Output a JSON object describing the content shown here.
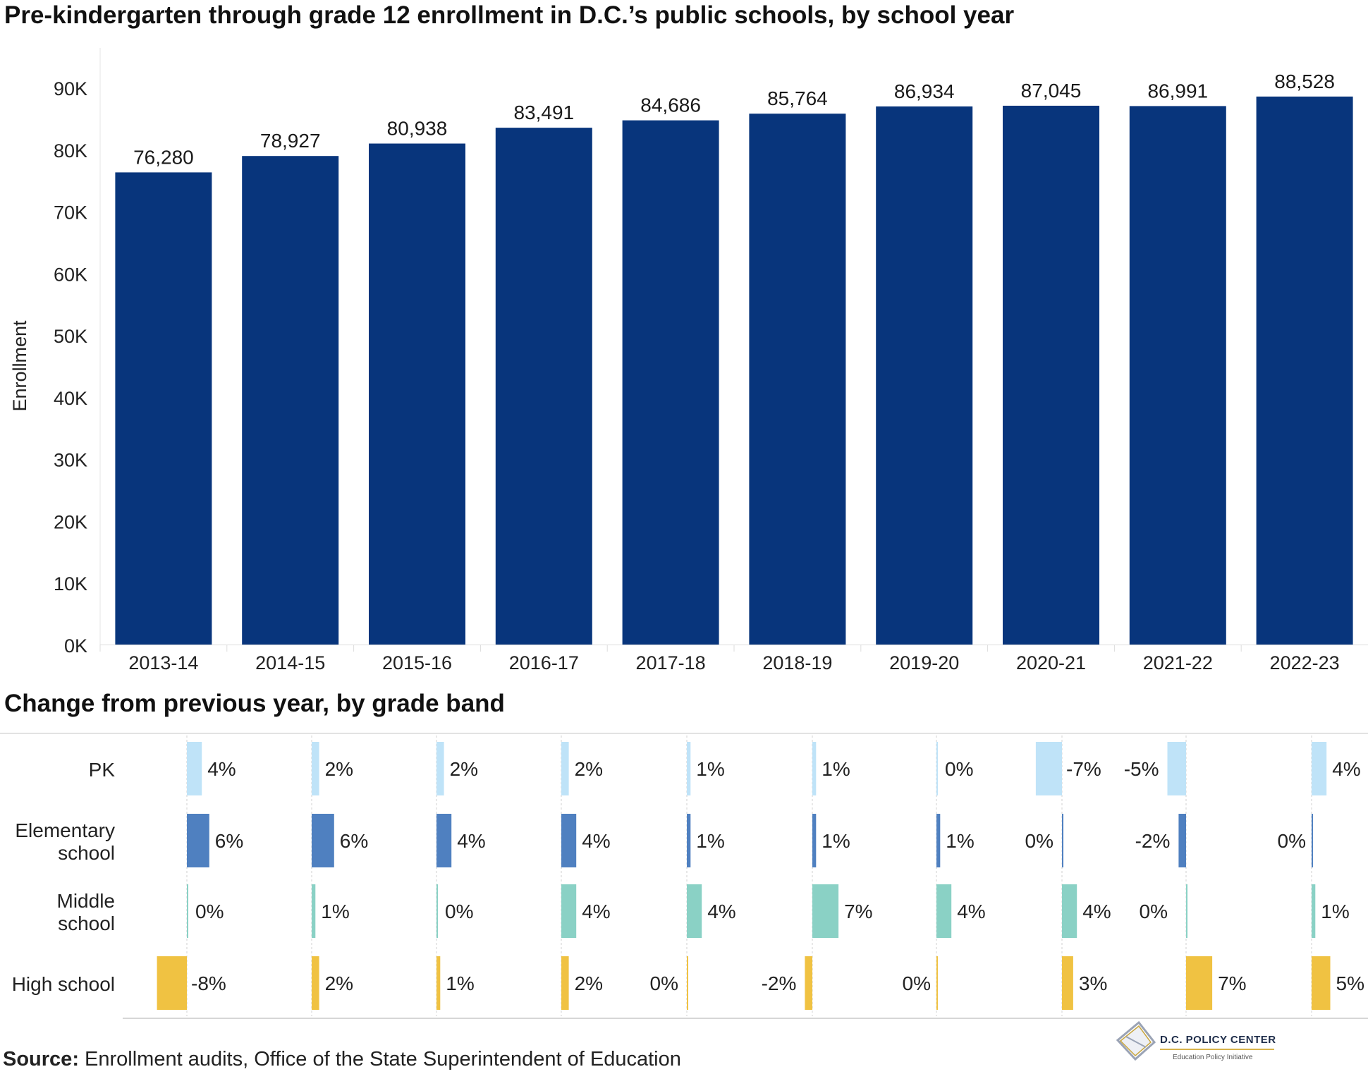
{
  "title": "Pre-kindergarten through grade 12 enrollment in D.C.’s public schools, by school year",
  "subtitle": "Change from previous year, by grade band",
  "source_label": "Source:",
  "source_text": " Enrollment audits, Office of the State Superintendent of Education",
  "logo": {
    "name": "D.C. POLICY CENTER",
    "tagline": "Education Policy Initiative"
  },
  "colors": {
    "bar": "#08357c",
    "pk": "#bfe3f8",
    "elementary": "#4f80c0",
    "middle": "#8ad1c5",
    "high": "#f0c242"
  },
  "chart_data": [
    {
      "type": "bar",
      "title": "Pre-kindergarten through grade 12 enrollment in D.C.’s public schools, by school year",
      "ylabel": "Enrollment",
      "xlabel": "",
      "categories": [
        "2013-14",
        "2014-15",
        "2015-16",
        "2016-17",
        "2017-18",
        "2018-19",
        "2019-20",
        "2020-21",
        "2021-22",
        "2022-23"
      ],
      "values": [
        76280,
        78927,
        80938,
        83491,
        84686,
        85764,
        86934,
        87045,
        86991,
        88528
      ],
      "value_labels": [
        "76,280",
        "78,927",
        "80,938",
        "83,491",
        "84,686",
        "85,764",
        "86,934",
        "87,045",
        "86,991",
        "88,528"
      ],
      "ylim": [
        0,
        90000
      ],
      "yticks": [
        0,
        10000,
        20000,
        30000,
        40000,
        50000,
        60000,
        70000,
        80000,
        90000
      ],
      "ytick_labels": [
        "0K",
        "10K",
        "20K",
        "30K",
        "40K",
        "50K",
        "60K",
        "70K",
        "80K",
        "90K"
      ],
      "grid": false
    },
    {
      "type": "bar",
      "title": "Change from previous year, by grade band",
      "categories": [
        "2013-14",
        "2014-15",
        "2015-16",
        "2016-17",
        "2017-18",
        "2018-19",
        "2019-20",
        "2020-21",
        "2021-22",
        "2022-23"
      ],
      "series": [
        {
          "name": "PK",
          "label_lines": [
            "PK"
          ],
          "values": [
            4,
            2,
            2,
            2,
            1,
            1,
            0,
            -7,
            -5,
            4
          ],
          "labels": [
            "4%",
            "2%",
            "2%",
            "2%",
            "1%",
            "1%",
            "0%",
            "-7%",
            "-5%",
            "4%"
          ]
        },
        {
          "name": "Elementary school",
          "label_lines": [
            "Elementary",
            "school"
          ],
          "values": [
            6,
            6,
            4,
            4,
            1,
            1,
            1,
            0,
            -2,
            0
          ],
          "labels": [
            "6%",
            "6%",
            "4%",
            "4%",
            "1%",
            "1%",
            "1%",
            "0%",
            "-2%",
            "0%"
          ]
        },
        {
          "name": "Middle school",
          "label_lines": [
            "Middle",
            "school"
          ],
          "values": [
            0,
            1,
            0,
            4,
            4,
            7,
            4,
            4,
            0,
            1
          ],
          "labels": [
            "0%",
            "1%",
            "0%",
            "4%",
            "4%",
            "7%",
            "4%",
            "4%",
            "0%",
            "1%"
          ]
        },
        {
          "name": "High school",
          "label_lines": [
            "High school"
          ],
          "values": [
            -8,
            2,
            1,
            2,
            0,
            -2,
            0,
            3,
            7,
            5
          ],
          "labels": [
            "-8%",
            "2%",
            "1%",
            "2%",
            "0%",
            "-2%",
            "0%",
            "3%",
            "7%",
            "5%"
          ]
        }
      ],
      "unit": "%"
    }
  ]
}
